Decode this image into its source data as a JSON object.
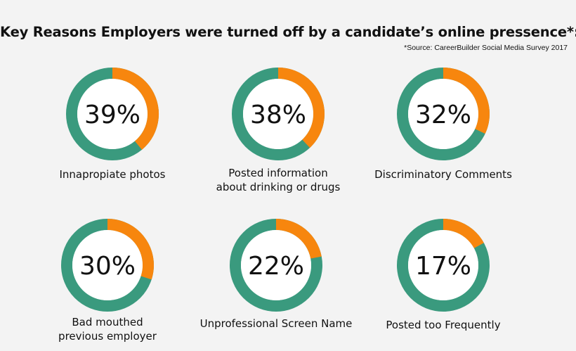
{
  "header": {
    "title": "Key Reasons Employers were turned off by a candidate’s online pressence*:",
    "source": "*Source: CareerBuilder Social Media Survey 2017"
  },
  "colors": {
    "ring": "#3a9a7e",
    "highlight": "#f7860e",
    "hole": "#ffffff",
    "background": "#f3f3f3"
  },
  "chart_data": [
    {
      "type": "pie",
      "value_percent": 39,
      "label": "39%",
      "caption": [
        "Innapropiate photos"
      ]
    },
    {
      "type": "pie",
      "value_percent": 38,
      "label": "38%",
      "caption": [
        "Posted information",
        "about drinking or drugs"
      ]
    },
    {
      "type": "pie",
      "value_percent": 32,
      "label": "32%",
      "caption": [
        "Discriminatory Comments"
      ]
    },
    {
      "type": "pie",
      "value_percent": 30,
      "label": "30%",
      "caption": [
        "Bad mouthed",
        "previous employer"
      ]
    },
    {
      "type": "pie",
      "value_percent": 22,
      "label": "22%",
      "caption": [
        "Unprofessional Screen Name"
      ]
    },
    {
      "type": "pie",
      "value_percent": 17,
      "label": "17%",
      "caption": [
        "Posted too Frequently"
      ]
    }
  ]
}
